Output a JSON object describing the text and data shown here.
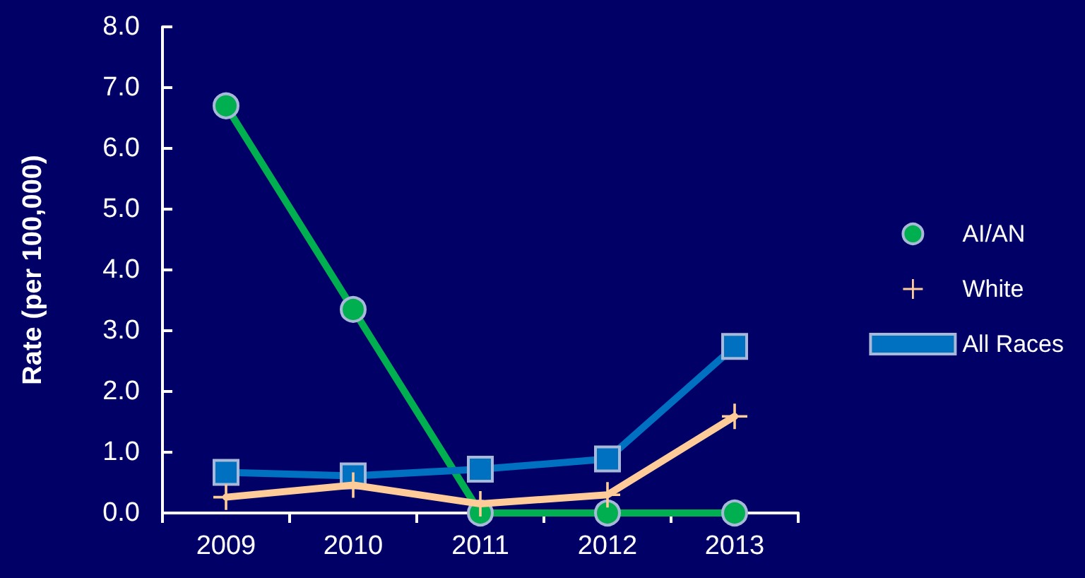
{
  "chart_data": {
    "type": "line",
    "ylabel": "Rate (per 100,000)",
    "categories": [
      "2009",
      "2010",
      "2011",
      "2012",
      "2013"
    ],
    "series": [
      {
        "name": "AI/AN",
        "color": "#00b050",
        "marker": "circle",
        "values": [
          6.7,
          3.35,
          0,
          0,
          0
        ]
      },
      {
        "name": "White",
        "color": "#ffcc99",
        "marker": "cross",
        "values": [
          0.26,
          0.46,
          0.15,
          0.3,
          1.59
        ]
      },
      {
        "name": "All Races",
        "color": "#0070c0",
        "marker": "square",
        "values": [
          0.67,
          0.61,
          0.72,
          0.89,
          2.74
        ]
      }
    ],
    "ylim": [
      0,
      8
    ],
    "yticks": [
      {
        "value": 0,
        "label": "0.0"
      },
      {
        "value": 1,
        "label": "1.0"
      },
      {
        "value": 2,
        "label": "2.0"
      },
      {
        "value": 3,
        "label": "3.0"
      },
      {
        "value": 4,
        "label": "4.0"
      },
      {
        "value": 5,
        "label": "5.0"
      },
      {
        "value": 6,
        "label": "6.0"
      },
      {
        "value": 7,
        "label": "7.0"
      },
      {
        "value": 8,
        "label": "8.0"
      }
    ],
    "grid": false,
    "legend": "right",
    "line_style": "solid"
  }
}
